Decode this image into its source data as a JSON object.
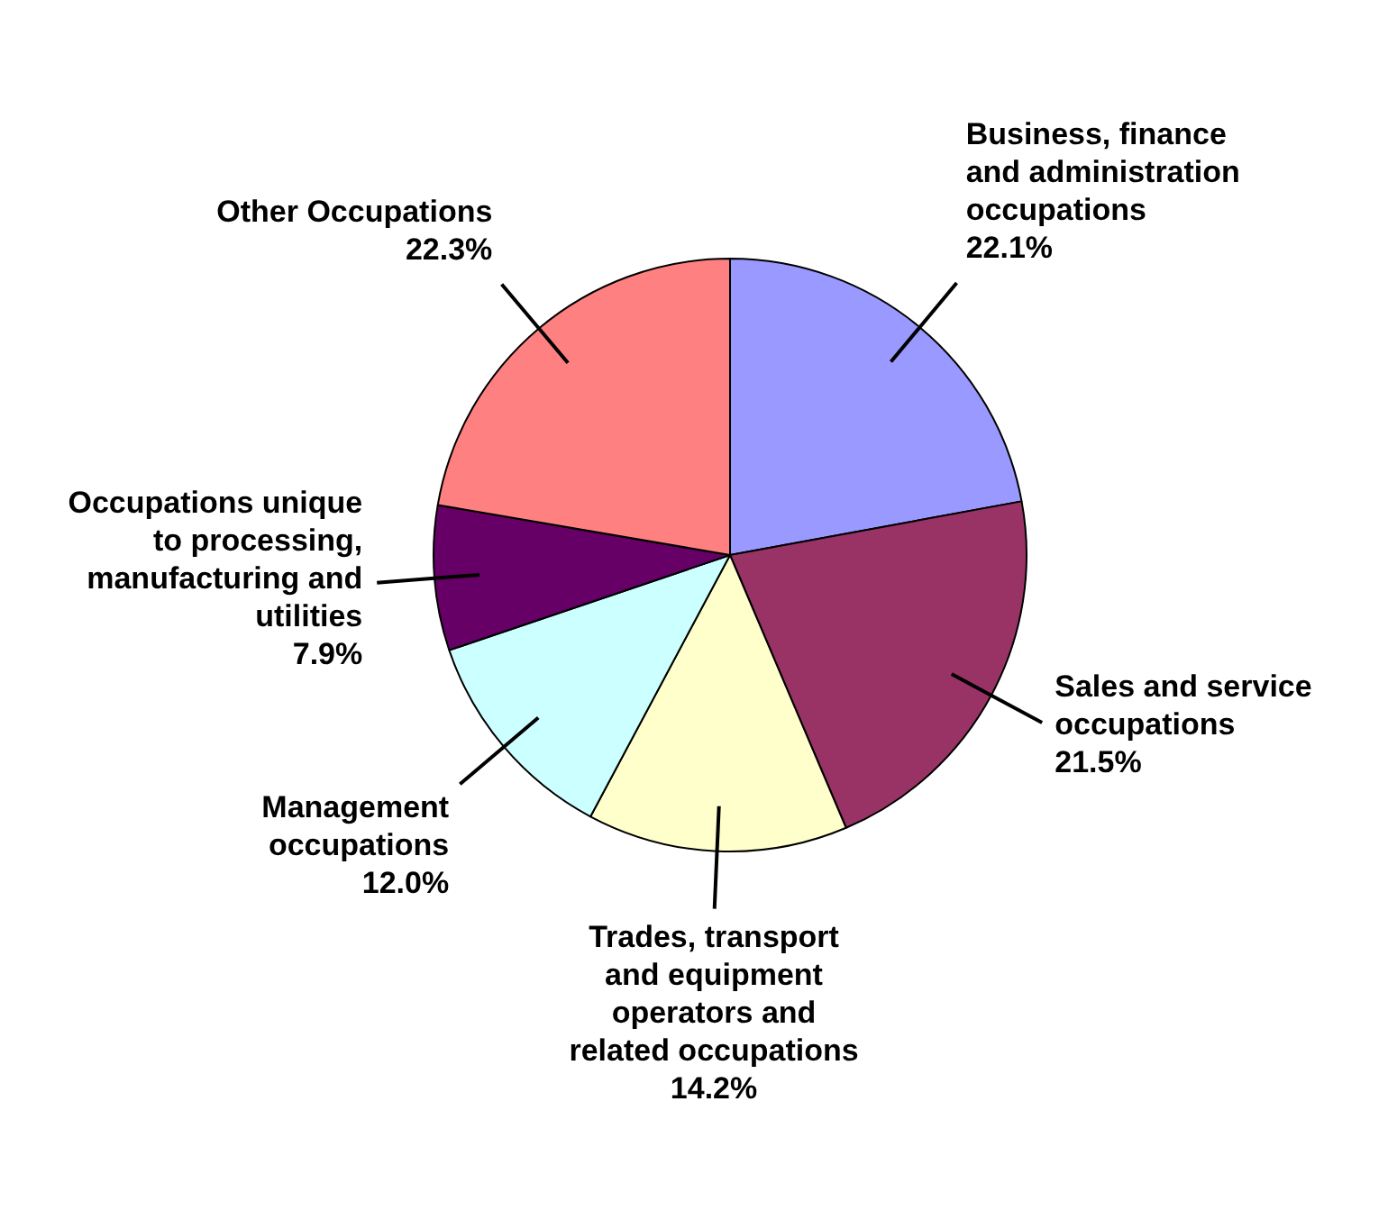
{
  "chart_data": {
    "type": "pie",
    "categories": [
      "Business, finance and administration occupations",
      "Sales and service occupations",
      "Trades, transport and equipment operators and related occupations",
      "Management occupations",
      "Occupations unique to processing, manufacturing and utilities",
      "Other Occupations"
    ],
    "values": [
      22.1,
      21.5,
      14.2,
      12.0,
      7.9,
      22.3
    ],
    "value_labels": [
      "22.1%",
      "21.5%",
      "14.2%",
      "12.0%",
      "7.9%",
      "22.3%"
    ],
    "colors": [
      "#9999ff",
      "#993366",
      "#ffffcc",
      "#ccffff",
      "#660066",
      "#ff8080"
    ],
    "legend": false
  }
}
